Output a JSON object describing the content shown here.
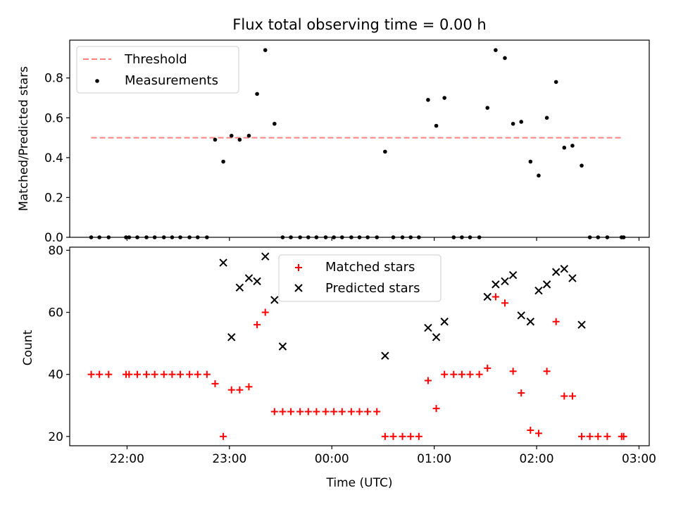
{
  "chart_data": [
    {
      "type": "scatter",
      "title": "Flux total observing time = 0.00 h",
      "xlabel": "",
      "ylabel": "Matched/Predicted stars",
      "ylim": [
        0,
        0.99
      ],
      "yticks": [
        0.0,
        0.2,
        0.4,
        0.6,
        0.8
      ],
      "ytick_labels": [
        "0.0",
        "0.2",
        "0.4",
        "0.6",
        "0.8"
      ],
      "xlim_hours": [
        21.44,
        27.1
      ],
      "xticks_hours": [
        22,
        23,
        24,
        25,
        26,
        27
      ],
      "legend_position": "upper-left",
      "threshold": {
        "name": "Threshold",
        "value": 0.5,
        "x_start_hours": 21.65,
        "x_end_hours": 26.85,
        "color": "#ff8080"
      },
      "series": [
        {
          "name": "Measurements",
          "color": "#000000",
          "x_hours": [
            21.65,
            21.73,
            21.82,
            21.99,
            22.02,
            22.1,
            22.19,
            22.27,
            22.36,
            22.44,
            22.52,
            22.61,
            22.69,
            22.78,
            22.86,
            22.94,
            23.02,
            23.1,
            23.19,
            23.27,
            23.35,
            23.44,
            23.52,
            23.6,
            23.69,
            23.77,
            23.85,
            23.94,
            24.02,
            24.1,
            24.19,
            24.27,
            24.35,
            24.44,
            24.52,
            24.6,
            24.69,
            24.77,
            24.85,
            24.94,
            25.02,
            25.1,
            25.19,
            25.27,
            25.35,
            25.44,
            25.52,
            25.6,
            25.69,
            25.77,
            25.85,
            25.94,
            26.02,
            26.1,
            26.19,
            26.27,
            26.35,
            26.44,
            26.52,
            26.6,
            26.69,
            26.83,
            26.85
          ],
          "values": [
            0,
            0,
            0,
            0,
            0,
            0,
            0,
            0,
            0,
            0,
            0,
            0,
            0,
            0,
            0.49,
            0.38,
            0.51,
            0.49,
            0.51,
            0.72,
            0.94,
            0.57,
            0,
            0,
            0,
            0,
            0,
            0,
            0,
            0,
            0,
            0,
            0,
            0,
            0.43,
            0,
            0,
            0,
            0,
            0.69,
            0.56,
            0.7,
            0,
            0,
            0,
            0,
            0.65,
            0.94,
            0.9,
            0.57,
            0.58,
            0.38,
            0.31,
            0.6,
            0.78,
            0.45,
            0.46,
            0.36,
            0,
            0,
            0,
            0,
            0
          ]
        }
      ]
    },
    {
      "type": "scatter",
      "title": "",
      "xlabel": "Time (UTC)",
      "ylabel": "Count",
      "ylim": [
        17,
        81
      ],
      "yticks": [
        20,
        40,
        60,
        80
      ],
      "ytick_labels": [
        "20",
        "40",
        "60",
        "80"
      ],
      "xlim_hours": [
        21.44,
        27.1
      ],
      "xticks_hours": [
        22,
        23,
        24,
        25,
        26,
        27
      ],
      "xtick_labels": [
        "22:00",
        "23:00",
        "00:00",
        "01:00",
        "02:00",
        "03:00"
      ],
      "legend_position": "upper-center",
      "series": [
        {
          "name": "Matched stars",
          "marker": "plus",
          "color": "#ff0000",
          "x_hours": [
            21.65,
            21.73,
            21.82,
            21.99,
            22.02,
            22.1,
            22.19,
            22.27,
            22.36,
            22.44,
            22.52,
            22.61,
            22.69,
            22.78,
            22.86,
            22.94,
            23.02,
            23.1,
            23.19,
            23.27,
            23.35,
            23.44,
            23.52,
            23.6,
            23.69,
            23.77,
            23.85,
            23.94,
            24.02,
            24.1,
            24.19,
            24.27,
            24.35,
            24.44,
            24.52,
            24.6,
            24.69,
            24.77,
            24.85,
            24.94,
            25.02,
            25.1,
            25.19,
            25.27,
            25.35,
            25.44,
            25.52,
            25.6,
            25.69,
            25.77,
            25.85,
            25.94,
            26.02,
            26.1,
            26.19,
            26.27,
            26.35,
            26.44,
            26.52,
            26.6,
            26.69,
            26.83,
            26.85
          ],
          "values": [
            40,
            40,
            40,
            40,
            40,
            40,
            40,
            40,
            40,
            40,
            40,
            40,
            40,
            40,
            37,
            20,
            35,
            35,
            36,
            56,
            60,
            28,
            28,
            28,
            28,
            28,
            28,
            28,
            28,
            28,
            28,
            28,
            28,
            28,
            20,
            20,
            20,
            20,
            20,
            38,
            29,
            40,
            40,
            40,
            40,
            40,
            42,
            65,
            63,
            41,
            34,
            22,
            21,
            41,
            57,
            33,
            33,
            20,
            20,
            20,
            20,
            20,
            20
          ]
        },
        {
          "name": "Predicted stars",
          "marker": "x",
          "color": "#000000",
          "x_hours": [
            22.94,
            23.02,
            23.1,
            23.19,
            23.27,
            23.35,
            23.44,
            23.52,
            24.52,
            24.94,
            25.02,
            25.1,
            25.52,
            25.6,
            25.69,
            25.77,
            25.85,
            25.94,
            26.02,
            26.1,
            26.19,
            26.27,
            26.35,
            26.44
          ],
          "values": [
            76,
            52,
            68,
            71,
            70,
            78,
            64,
            49,
            46,
            55,
            52,
            57,
            65,
            69,
            70,
            72,
            59,
            57,
            67,
            69,
            73,
            74,
            71,
            56
          ]
        }
      ]
    }
  ]
}
